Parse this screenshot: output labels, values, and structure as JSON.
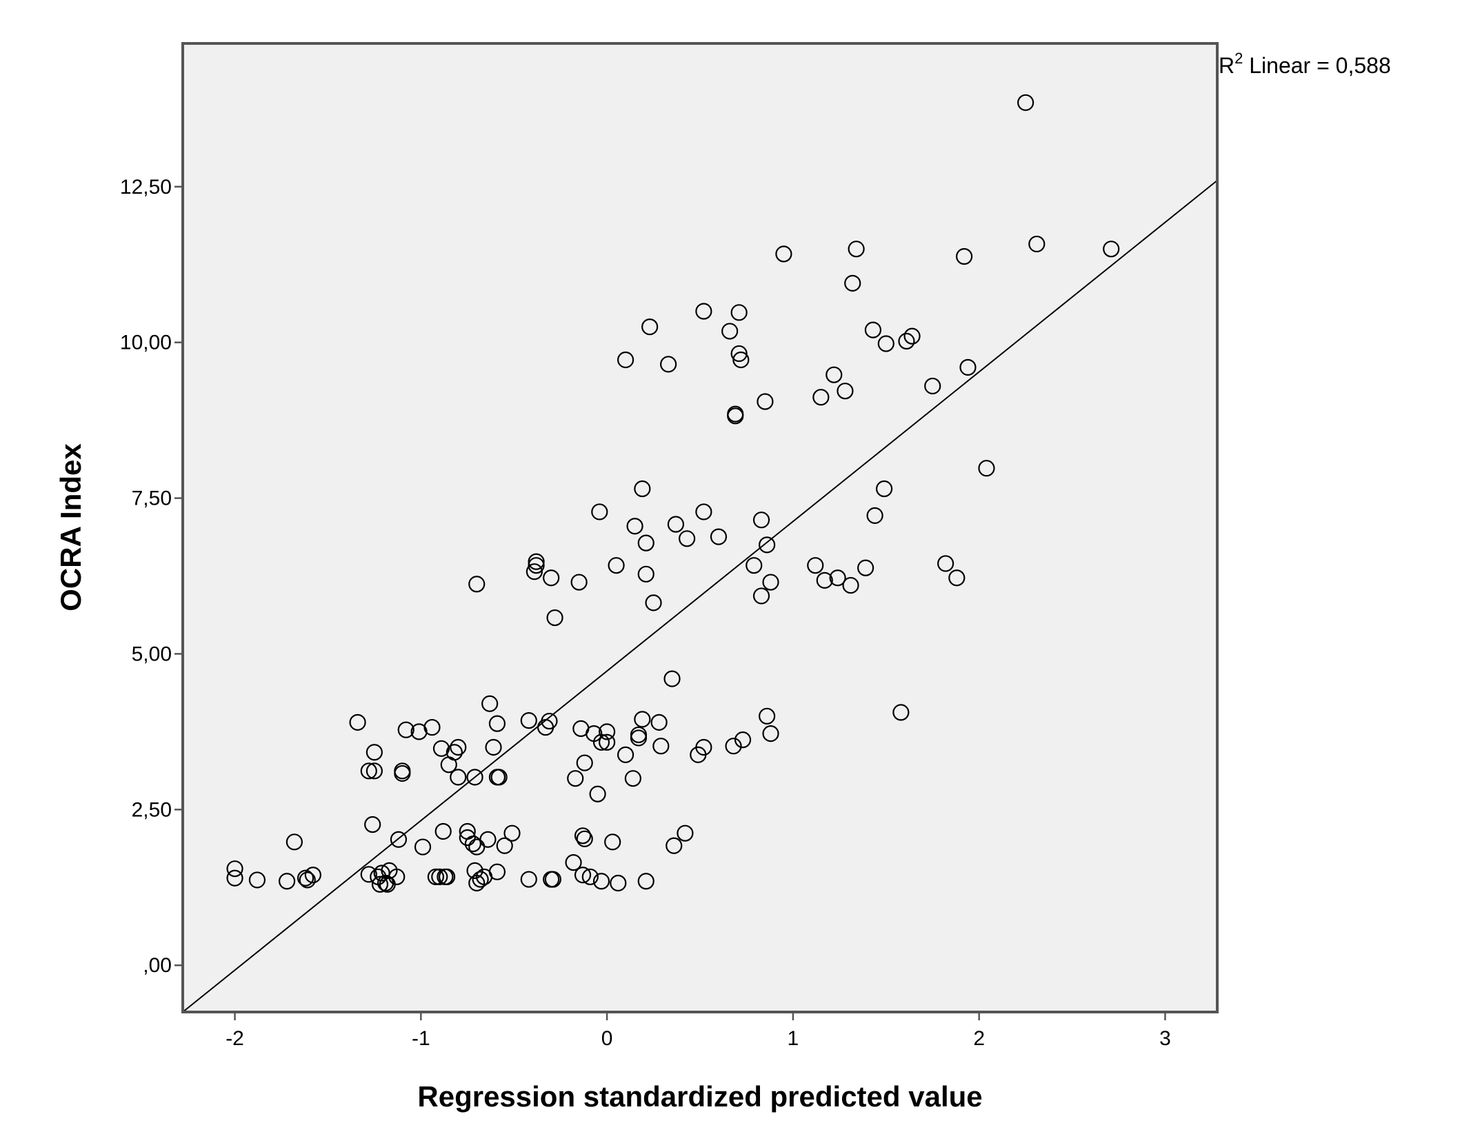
{
  "chart_data": {
    "type": "scatter",
    "title": "",
    "xlabel": "Regression standardized predicted value",
    "ylabel": "OCRA Index",
    "xlim": [
      -2.28,
      3.28
    ],
    "ylim": [
      -0.75,
      14.8
    ],
    "x_ticks": [
      {
        "value": -2,
        "label": "-2"
      },
      {
        "value": -1,
        "label": "-1"
      },
      {
        "value": 0,
        "label": "0"
      },
      {
        "value": 1,
        "label": "1"
      },
      {
        "value": 2,
        "label": "2"
      },
      {
        "value": 3,
        "label": "3"
      }
    ],
    "y_ticks": [
      {
        "value": 0,
        "label": ",00"
      },
      {
        "value": 2.5,
        "label": "2,50"
      },
      {
        "value": 5,
        "label": "5,00"
      },
      {
        "value": 7.5,
        "label": "7,50"
      },
      {
        "value": 10,
        "label": "10,00"
      },
      {
        "value": 12.5,
        "label": "12,50"
      }
    ],
    "grid": false,
    "background_color": "#f0f0f0",
    "marker_color": "#000000",
    "fit_line": {
      "type": "linear",
      "r_squared_label": "R",
      "r_squared_sup": "2",
      "r_squared_text": " Linear = 0,588",
      "endpoints": [
        [
          -2.28,
          -0.75
        ],
        [
          3.28,
          12.6
        ]
      ]
    },
    "points": [
      [
        -2.0,
        1.55
      ],
      [
        -2.0,
        1.4
      ],
      [
        -1.88,
        1.37
      ],
      [
        -1.72,
        1.35
      ],
      [
        -1.68,
        1.98
      ],
      [
        -1.62,
        1.4
      ],
      [
        -1.61,
        1.37
      ],
      [
        -1.58,
        1.45
      ],
      [
        -1.34,
        3.9
      ],
      [
        -1.28,
        3.12
      ],
      [
        -1.28,
        1.46
      ],
      [
        -1.26,
        2.26
      ],
      [
        -1.25,
        3.12
      ],
      [
        -1.25,
        3.42
      ],
      [
        -1.23,
        1.42
      ],
      [
        -1.22,
        1.3
      ],
      [
        -1.21,
        1.48
      ],
      [
        -1.19,
        1.32
      ],
      [
        -1.18,
        1.3
      ],
      [
        -1.17,
        1.52
      ],
      [
        -1.13,
        1.42
      ],
      [
        -1.12,
        2.02
      ],
      [
        -1.1,
        3.08
      ],
      [
        -1.1,
        3.12
      ],
      [
        -1.08,
        3.78
      ],
      [
        -1.01,
        3.75
      ],
      [
        -0.99,
        1.9
      ],
      [
        -0.94,
        3.82
      ],
      [
        -0.92,
        1.42
      ],
      [
        -0.9,
        1.42
      ],
      [
        -0.89,
        3.48
      ],
      [
        -0.88,
        2.15
      ],
      [
        -0.87,
        1.42
      ],
      [
        -0.86,
        1.42
      ],
      [
        -0.85,
        3.22
      ],
      [
        -0.82,
        3.42
      ],
      [
        -0.8,
        3.5
      ],
      [
        -0.8,
        3.02
      ],
      [
        -0.75,
        2.15
      ],
      [
        -0.75,
        2.05
      ],
      [
        -0.72,
        1.95
      ],
      [
        -0.71,
        1.52
      ],
      [
        -0.71,
        3.02
      ],
      [
        -0.7,
        1.9
      ],
      [
        -0.7,
        1.32
      ],
      [
        -0.7,
        6.12
      ],
      [
        -0.68,
        1.38
      ],
      [
        -0.66,
        1.42
      ],
      [
        -0.64,
        2.02
      ],
      [
        -0.63,
        4.2
      ],
      [
        -0.61,
        3.5
      ],
      [
        -0.59,
        3.02
      ],
      [
        -0.59,
        3.88
      ],
      [
        -0.58,
        3.02
      ],
      [
        -0.59,
        1.5
      ],
      [
        -0.55,
        1.92
      ],
      [
        -0.51,
        2.12
      ],
      [
        -0.42,
        3.93
      ],
      [
        -0.42,
        1.38
      ],
      [
        -0.39,
        6.32
      ],
      [
        -0.38,
        6.42
      ],
      [
        -0.38,
        6.48
      ],
      [
        -0.33,
        3.82
      ],
      [
        -0.31,
        3.92
      ],
      [
        -0.3,
        6.22
      ],
      [
        -0.3,
        1.38
      ],
      [
        -0.29,
        1.38
      ],
      [
        -0.28,
        5.58
      ],
      [
        -0.18,
        1.65
      ],
      [
        -0.17,
        3.0
      ],
      [
        -0.15,
        6.15
      ],
      [
        -0.14,
        3.8
      ],
      [
        -0.13,
        1.45
      ],
      [
        -0.13,
        2.08
      ],
      [
        -0.12,
        2.03
      ],
      [
        -0.12,
        3.25
      ],
      [
        -0.09,
        1.42
      ],
      [
        -0.07,
        3.72
      ],
      [
        -0.05,
        2.75
      ],
      [
        -0.04,
        7.28
      ],
      [
        -0.03,
        1.35
      ],
      [
        -0.03,
        3.58
      ],
      [
        0.0,
        3.58
      ],
      [
        0.0,
        3.75
      ],
      [
        0.03,
        1.98
      ],
      [
        0.05,
        6.42
      ],
      [
        0.06,
        1.32
      ],
      [
        0.1,
        3.38
      ],
      [
        0.1,
        9.72
      ],
      [
        0.14,
        3.0
      ],
      [
        0.15,
        7.05
      ],
      [
        0.17,
        3.65
      ],
      [
        0.17,
        3.7
      ],
      [
        0.19,
        3.95
      ],
      [
        0.19,
        7.65
      ],
      [
        0.21,
        1.35
      ],
      [
        0.21,
        6.28
      ],
      [
        0.21,
        6.78
      ],
      [
        0.23,
        10.25
      ],
      [
        0.25,
        5.82
      ],
      [
        0.28,
        3.9
      ],
      [
        0.29,
        3.52
      ],
      [
        0.33,
        9.65
      ],
      [
        0.35,
        4.6
      ],
      [
        0.36,
        1.92
      ],
      [
        0.37,
        7.08
      ],
      [
        0.42,
        2.12
      ],
      [
        0.43,
        6.85
      ],
      [
        0.49,
        3.38
      ],
      [
        0.52,
        3.5
      ],
      [
        0.52,
        7.28
      ],
      [
        0.52,
        10.5
      ],
      [
        0.6,
        6.88
      ],
      [
        0.66,
        10.18
      ],
      [
        0.68,
        3.52
      ],
      [
        0.69,
        8.82
      ],
      [
        0.69,
        8.85
      ],
      [
        0.71,
        9.82
      ],
      [
        0.71,
        10.48
      ],
      [
        0.72,
        9.72
      ],
      [
        0.73,
        3.62
      ],
      [
        0.79,
        6.42
      ],
      [
        0.83,
        7.15
      ],
      [
        0.83,
        5.93
      ],
      [
        0.85,
        9.05
      ],
      [
        0.86,
        6.75
      ],
      [
        0.86,
        4.0
      ],
      [
        0.88,
        6.15
      ],
      [
        0.88,
        3.72
      ],
      [
        0.95,
        11.42
      ],
      [
        1.12,
        6.42
      ],
      [
        1.15,
        9.12
      ],
      [
        1.17,
        6.18
      ],
      [
        1.22,
        9.48
      ],
      [
        1.24,
        6.22
      ],
      [
        1.28,
        9.22
      ],
      [
        1.31,
        6.1
      ],
      [
        1.32,
        10.95
      ],
      [
        1.34,
        11.5
      ],
      [
        1.39,
        6.38
      ],
      [
        1.43,
        10.2
      ],
      [
        1.44,
        7.22
      ],
      [
        1.49,
        7.65
      ],
      [
        1.5,
        9.98
      ],
      [
        1.58,
        4.06
      ],
      [
        1.61,
        10.02
      ],
      [
        1.64,
        10.1
      ],
      [
        1.75,
        9.3
      ],
      [
        1.82,
        6.45
      ],
      [
        1.88,
        6.22
      ],
      [
        1.92,
        11.38
      ],
      [
        1.94,
        9.6
      ],
      [
        2.04,
        7.98
      ],
      [
        2.25,
        13.85
      ],
      [
        2.31,
        11.58
      ],
      [
        2.71,
        11.5
      ]
    ]
  }
}
